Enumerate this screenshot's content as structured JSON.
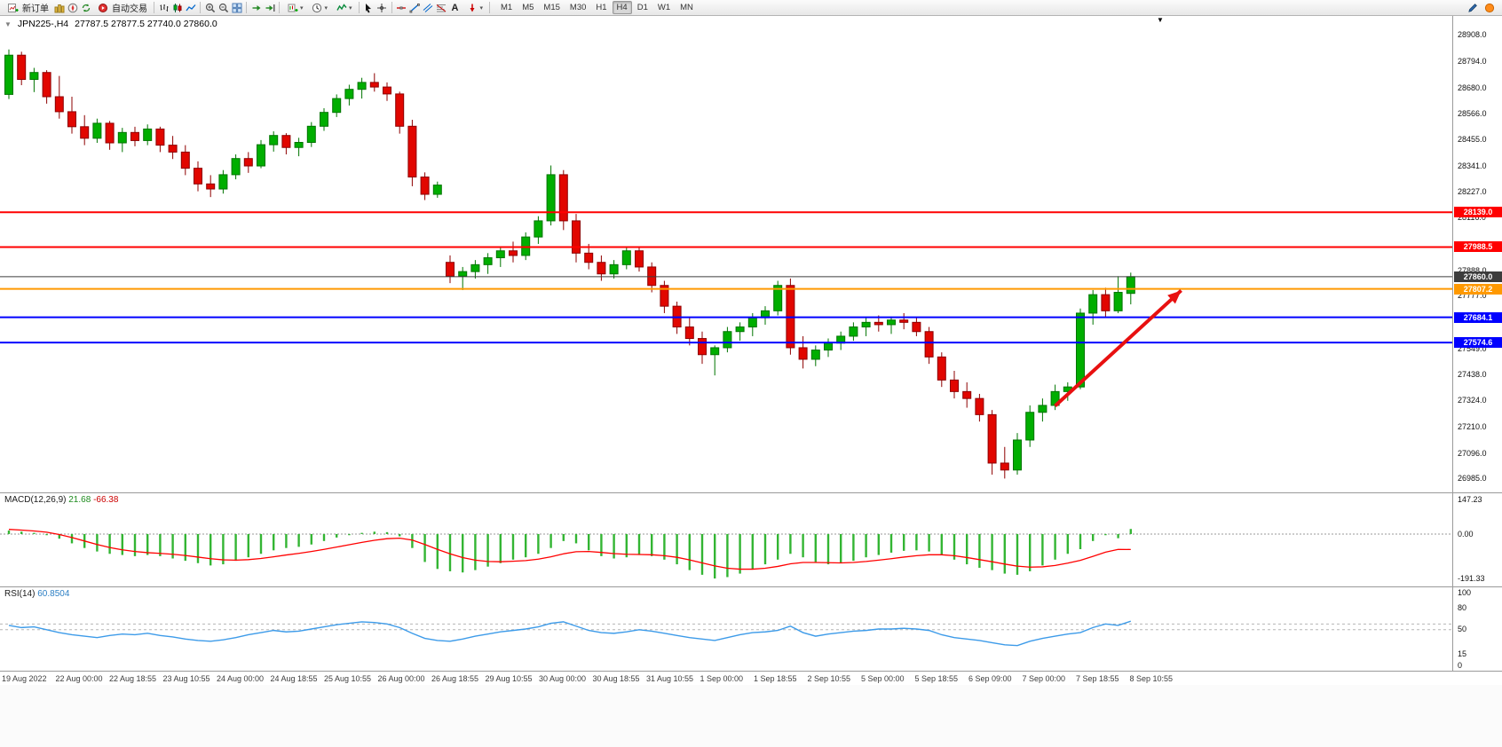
{
  "toolbar": {
    "new_order": "新订单",
    "auto_trading": "自动交易",
    "text_tool": "A",
    "timeframes": [
      "M1",
      "M5",
      "M15",
      "M30",
      "H1",
      "H4",
      "D1",
      "W1",
      "MN"
    ],
    "active_timeframe": "H4"
  },
  "chart": {
    "title": "JPN225-,H4",
    "ohlc": "27787.5 27877.5 27740.0 27860.0"
  },
  "chart_data": [
    {
      "type": "candlestick",
      "symbol": "JPN225-",
      "timeframe": "H4",
      "ylim": [
        26925,
        28990
      ],
      "y_ticks": [
        "28908.0",
        "28794.0",
        "28680.0",
        "28566.0",
        "28455.0",
        "28341.0",
        "28227.0",
        "28116.0",
        "27888.0",
        "27777.0",
        "27549.0",
        "27438.0",
        "27324.0",
        "27210.0",
        "27096.0",
        "26985.0"
      ],
      "x_labels": [
        "19 Aug 2022",
        "22 Aug 00:00",
        "22 Aug 18:55",
        "23 Aug 10:55",
        "24 Aug 00:00",
        "24 Aug 18:55",
        "25 Aug 10:55",
        "26 Aug 00:00",
        "26 Aug 18:55",
        "29 Aug 10:55",
        "30 Aug 00:00",
        "30 Aug 18:55",
        "31 Aug 10:55",
        "1 Sep 00:00",
        "1 Sep 18:55",
        "2 Sep 10:55",
        "5 Sep 00:00",
        "5 Sep 18:55",
        "6 Sep 09:00",
        "7 Sep 00:00",
        "7 Sep 18:55",
        "8 Sep 10:55"
      ],
      "levels": [
        {
          "label": "28139.0",
          "price": 28139.0,
          "color": "#ff0000",
          "width": 2
        },
        {
          "label": "27988.5",
          "price": 27988.5,
          "color": "#ff0000",
          "width": 2
        },
        {
          "label": "27860.0",
          "price": 27860.0,
          "color": "#3c3c3c",
          "width": 1,
          "role": "current-price"
        },
        {
          "label": "27807.2",
          "price": 27807.2,
          "color": "#ff9900",
          "width": 2
        },
        {
          "label": "27684.1",
          "price": 27684.1,
          "color": "#0000ff",
          "width": 2
        },
        {
          "label": "27574.6",
          "price": 27574.6,
          "color": "#0000ff",
          "width": 2
        }
      ],
      "arrow": {
        "from_index": 83,
        "from_price": 27300,
        "to_index": 93,
        "to_price": 27800,
        "color": "#e81010"
      },
      "colors": {
        "up": "#00ae00",
        "up_stroke": "#007400",
        "down": "#e10600",
        "down_stroke": "#8e0000"
      },
      "candles": [
        [
          28650,
          28845,
          28630,
          28820
        ],
        [
          28820,
          28835,
          28690,
          28715
        ],
        [
          28715,
          28765,
          28660,
          28745
        ],
        [
          28745,
          28755,
          28610,
          28640
        ],
        [
          28640,
          28730,
          28545,
          28575
        ],
        [
          28575,
          28640,
          28480,
          28510
        ],
        [
          28510,
          28560,
          28430,
          28460
        ],
        [
          28460,
          28545,
          28440,
          28525
        ],
        [
          28525,
          28535,
          28410,
          28440
        ],
        [
          28440,
          28505,
          28400,
          28485
        ],
        [
          28485,
          28510,
          28425,
          28450
        ],
        [
          28450,
          28520,
          28430,
          28500
        ],
        [
          28500,
          28510,
          28400,
          28430
        ],
        [
          28430,
          28470,
          28370,
          28400
        ],
        [
          28400,
          28430,
          28300,
          28330
        ],
        [
          28330,
          28360,
          28230,
          28262
        ],
        [
          28262,
          28300,
          28205,
          28240
        ],
        [
          28240,
          28322,
          28220,
          28302
        ],
        [
          28302,
          28390,
          28282,
          28372
        ],
        [
          28372,
          28400,
          28310,
          28340
        ],
        [
          28340,
          28452,
          28330,
          28432
        ],
        [
          28432,
          28490,
          28402,
          28472
        ],
        [
          28472,
          28482,
          28390,
          28420
        ],
        [
          28420,
          28462,
          28382,
          28442
        ],
        [
          28442,
          28530,
          28422,
          28512
        ],
        [
          28512,
          28590,
          28492,
          28572
        ],
        [
          28572,
          28650,
          28552,
          28632
        ],
        [
          28632,
          28692,
          28602,
          28672
        ],
        [
          28672,
          28722,
          28632,
          28702
        ],
        [
          28702,
          28742,
          28662,
          28682
        ],
        [
          28682,
          28702,
          28622,
          28652
        ],
        [
          28652,
          28662,
          28480,
          28512
        ],
        [
          28512,
          28540,
          28252,
          28292
        ],
        [
          28292,
          28312,
          28192,
          28217
        ],
        [
          28217,
          28272,
          28202,
          28257
        ],
        [
          27922,
          27952,
          27832,
          27862
        ],
        [
          27862,
          27902,
          27802,
          27882
        ],
        [
          27882,
          27932,
          27852,
          27912
        ],
        [
          27912,
          27962,
          27872,
          27942
        ],
        [
          27942,
          27992,
          27902,
          27972
        ],
        [
          27972,
          28012,
          27922,
          27952
        ],
        [
          27952,
          28052,
          27932,
          28032
        ],
        [
          28032,
          28122,
          28002,
          28102
        ],
        [
          28102,
          28342,
          28082,
          28302
        ],
        [
          28302,
          28322,
          28062,
          28102
        ],
        [
          28102,
          28132,
          27922,
          27962
        ],
        [
          27962,
          28002,
          27892,
          27922
        ],
        [
          27922,
          27952,
          27842,
          27872
        ],
        [
          27872,
          27932,
          27852,
          27912
        ],
        [
          27912,
          27990,
          27892,
          27972
        ],
        [
          27972,
          27986,
          27882,
          27902
        ],
        [
          27902,
          27922,
          27792,
          27822
        ],
        [
          27822,
          27842,
          27702,
          27732
        ],
        [
          27732,
          27752,
          27612,
          27642
        ],
        [
          27642,
          27682,
          27562,
          27592
        ],
        [
          27592,
          27622,
          27482,
          27522
        ],
        [
          27522,
          27562,
          27432,
          27552
        ],
        [
          27552,
          27642,
          27532,
          27622
        ],
        [
          27622,
          27662,
          27582,
          27642
        ],
        [
          27642,
          27702,
          27602,
          27682
        ],
        [
          27682,
          27732,
          27652,
          27712
        ],
        [
          27712,
          27842,
          27692,
          27822
        ],
        [
          27822,
          27852,
          27522,
          27552
        ],
        [
          27552,
          27602,
          27462,
          27502
        ],
        [
          27502,
          27562,
          27472,
          27542
        ],
        [
          27542,
          27592,
          27512,
          27572
        ],
        [
          27572,
          27622,
          27542,
          27602
        ],
        [
          27602,
          27662,
          27582,
          27642
        ],
        [
          27642,
          27682,
          27602,
          27662
        ],
        [
          27662,
          27692,
          27622,
          27652
        ],
        [
          27652,
          27687,
          27612,
          27672
        ],
        [
          27672,
          27702,
          27632,
          27662
        ],
        [
          27662,
          27682,
          27602,
          27622
        ],
        [
          27622,
          27642,
          27482,
          27512
        ],
        [
          27512,
          27532,
          27382,
          27412
        ],
        [
          27412,
          27452,
          27332,
          27362
        ],
        [
          27362,
          27402,
          27292,
          27332
        ],
        [
          27332,
          27352,
          27232,
          27262
        ],
        [
          27262,
          27282,
          27002,
          27052
        ],
        [
          27052,
          27122,
          26985,
          27022
        ],
        [
          27022,
          27182,
          27002,
          27152
        ],
        [
          27152,
          27302,
          27122,
          27272
        ],
        [
          27272,
          27332,
          27232,
          27302
        ],
        [
          27302,
          27392,
          27282,
          27362
        ],
        [
          27362,
          27402,
          27322,
          27382
        ],
        [
          27382,
          27722,
          27372,
          27702
        ],
        [
          27702,
          27802,
          27652,
          27782
        ],
        [
          27782,
          27812,
          27682,
          27712
        ],
        [
          27712,
          27862,
          27702,
          27792
        ],
        [
          27787.5,
          27877.5,
          27740.0,
          27860.0
        ]
      ]
    },
    {
      "type": "bar",
      "name": "MACD",
      "label": "MACD(12,26,9)",
      "value_main": "21.68",
      "value_signal": "-66.38",
      "params": [
        12,
        26,
        9
      ],
      "ylim": [
        -225,
        175
      ],
      "y_ticks": [
        "147.23",
        "0.00",
        "-191.33"
      ],
      "color": "#33b533",
      "signal_color": "#ff0000",
      "values": [
        15,
        10,
        5,
        -5,
        -20,
        -40,
        -60,
        -75,
        -85,
        -90,
        -95,
        -90,
        -95,
        -105,
        -115,
        -125,
        -135,
        -130,
        -115,
        -100,
        -85,
        -70,
        -60,
        -55,
        -45,
        -30,
        -15,
        -5,
        5,
        10,
        8,
        -10,
        -60,
        -120,
        -150,
        -160,
        -165,
        -155,
        -140,
        -125,
        -110,
        -100,
        -85,
        -60,
        -30,
        -40,
        -70,
        -95,
        -105,
        -100,
        -90,
        -95,
        -110,
        -130,
        -155,
        -175,
        -191,
        -185,
        -170,
        -150,
        -130,
        -110,
        -85,
        -100,
        -120,
        -130,
        -125,
        -115,
        -100,
        -90,
        -80,
        -72,
        -70,
        -75,
        -90,
        -110,
        -130,
        -145,
        -155,
        -170,
        -175,
        -160,
        -135,
        -110,
        -85,
        -65,
        -30,
        -5,
        -18,
        21.68
      ],
      "signal": [
        20,
        17,
        13,
        8,
        -2,
        -15,
        -30,
        -45,
        -58,
        -68,
        -75,
        -80,
        -83,
        -87,
        -92,
        -99,
        -106,
        -111,
        -112,
        -110,
        -105,
        -98,
        -90,
        -83,
        -75,
        -66,
        -56,
        -46,
        -36,
        -27,
        -20,
        -18,
        -26,
        -45,
        -66,
        -85,
        -101,
        -112,
        -118,
        -119,
        -117,
        -114,
        -108,
        -98,
        -85,
        -76,
        -75,
        -79,
        -84,
        -87,
        -88,
        -89,
        -93,
        -100,
        -111,
        -124,
        -137,
        -147,
        -151,
        -151,
        -147,
        -139,
        -128,
        -122,
        -122,
        -123,
        -124,
        -122,
        -118,
        -112,
        -106,
        -99,
        -93,
        -89,
        -89,
        -93,
        -101,
        -110,
        -119,
        -129,
        -138,
        -142,
        -141,
        -135,
        -125,
        -113,
        -96,
        -78,
        -66,
        -66.38
      ]
    },
    {
      "type": "line",
      "name": "RSI",
      "label": "RSI(14)",
      "value": "60.8504",
      "period": 14,
      "ylim": [
        -8,
        108
      ],
      "y_ticks": [
        "100",
        "80",
        "50",
        "15",
        "0"
      ],
      "levels": [
        57,
        49
      ],
      "color": "#3d9be9",
      "values": [
        55,
        52,
        53,
        49,
        45,
        42,
        40,
        38,
        41,
        43,
        42,
        44,
        41,
        39,
        36,
        34,
        33,
        35,
        38,
        42,
        45,
        48,
        46,
        47,
        50,
        53,
        56,
        58,
        60,
        59,
        57,
        52,
        44,
        37,
        34,
        33,
        36,
        40,
        43,
        46,
        48,
        50,
        53,
        58,
        60,
        54,
        48,
        45,
        44,
        46,
        49,
        47,
        44,
        41,
        38,
        36,
        34,
        38,
        42,
        45,
        46,
        48,
        54,
        45,
        40,
        43,
        45,
        47,
        48,
        50,
        50,
        51,
        50,
        48,
        42,
        38,
        36,
        34,
        31,
        28,
        27,
        33,
        37,
        40,
        43,
        45,
        52,
        57,
        55,
        60.85
      ]
    }
  ]
}
